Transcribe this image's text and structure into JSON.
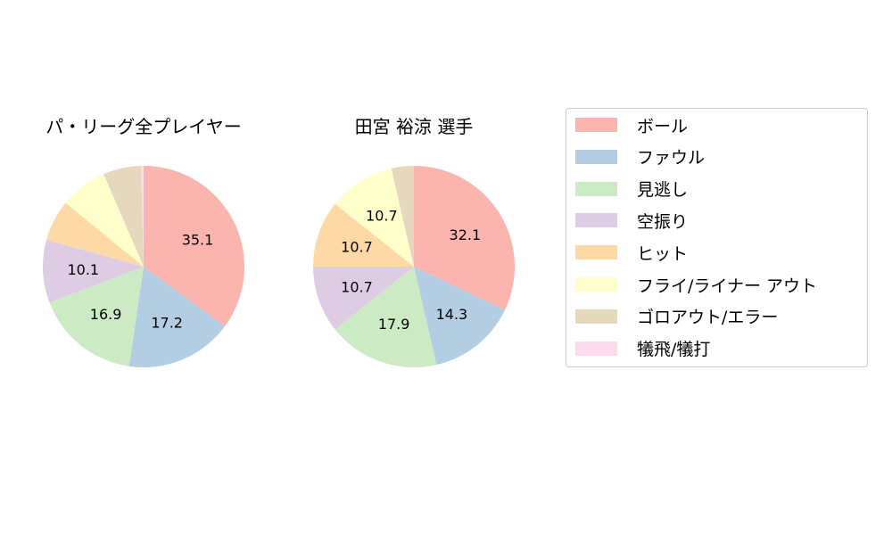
{
  "chart_data": [
    {
      "type": "pie",
      "title": "パ・リーグ全プレイヤー",
      "categories": [
        "ボール",
        "ファウル",
        "見逃し",
        "空振り",
        "ヒット",
        "フライ/ライナー アウト",
        "ゴロアウト/エラー",
        "犠飛/犠打"
      ],
      "values": [
        35.1,
        17.2,
        16.9,
        10.1,
        6.6,
        7.6,
        6.1,
        0.4
      ],
      "labels": [
        "35.1",
        "17.2",
        "16.9",
        "10.1",
        "",
        "",
        "",
        ""
      ],
      "start_angle": 90,
      "direction": "clockwise"
    },
    {
      "type": "pie",
      "title": "田宮 裕涼  選手",
      "categories": [
        "ボール",
        "ファウル",
        "見逃し",
        "空振り",
        "ヒット",
        "フライ/ライナー アウト",
        "ゴロアウト/エラー",
        "犠飛/犠打"
      ],
      "values": [
        32.1,
        14.3,
        17.9,
        10.7,
        10.7,
        10.7,
        3.6,
        0.0
      ],
      "labels": [
        "32.1",
        "14.3",
        "17.9",
        "10.7",
        "10.7",
        "10.7",
        "",
        ""
      ],
      "start_angle": 90,
      "direction": "clockwise"
    }
  ],
  "legend": {
    "items": [
      {
        "label": "ボール",
        "color": "#fbb4ae"
      },
      {
        "label": "ファウル",
        "color": "#b3cde3"
      },
      {
        "label": "見逃し",
        "color": "#ccebc5"
      },
      {
        "label": "空振り",
        "color": "#decbe4"
      },
      {
        "label": "ヒット",
        "color": "#fed9a6"
      },
      {
        "label": "フライ/ライナー アウト",
        "color": "#ffffcc"
      },
      {
        "label": "ゴロアウト/エラー",
        "color": "#e5d8bd"
      },
      {
        "label": "犠飛/犠打",
        "color": "#fddaec"
      }
    ]
  }
}
